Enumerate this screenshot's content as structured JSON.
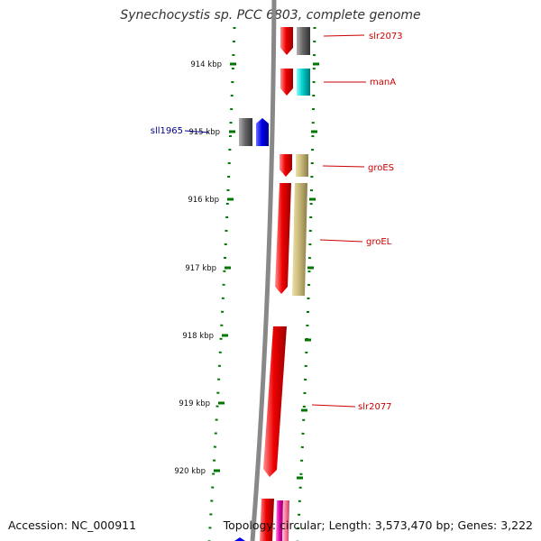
{
  "header": {
    "title": "Synechocystis sp. PCC 6803, complete genome"
  },
  "footer": {
    "accession": "Accession: NC_000911",
    "topology": "Topology: circular; Length: 3,573,470 bp; Genes: 3,222"
  },
  "colors": {
    "red": "#ee0000",
    "gray": "#666666",
    "cyan": "#00cccc",
    "khaki": "#c8b878",
    "blue": "#0000ee",
    "magenta": "#dd00aa",
    "pink": "#ff7799",
    "label_red": "#cc0000",
    "label_blue": "#000088",
    "dotted_green": "#007700"
  },
  "ruler": {
    "ticks": [
      {
        "label": "914 kbp"
      },
      {
        "label": "915 kbp"
      },
      {
        "label": "916 kbp"
      },
      {
        "label": "917 kbp"
      },
      {
        "label": "918 kbp"
      },
      {
        "label": "919 kbp"
      },
      {
        "label": "920 kbp"
      }
    ]
  },
  "gene_labels": [
    {
      "name": "slr2073",
      "strand": "forward"
    },
    {
      "name": "manA",
      "strand": "forward"
    },
    {
      "name": "sll1965",
      "strand": "reverse"
    },
    {
      "name": "groES",
      "strand": "forward"
    },
    {
      "name": "groEL",
      "strand": "forward"
    },
    {
      "name": "slr2077",
      "strand": "forward"
    }
  ]
}
